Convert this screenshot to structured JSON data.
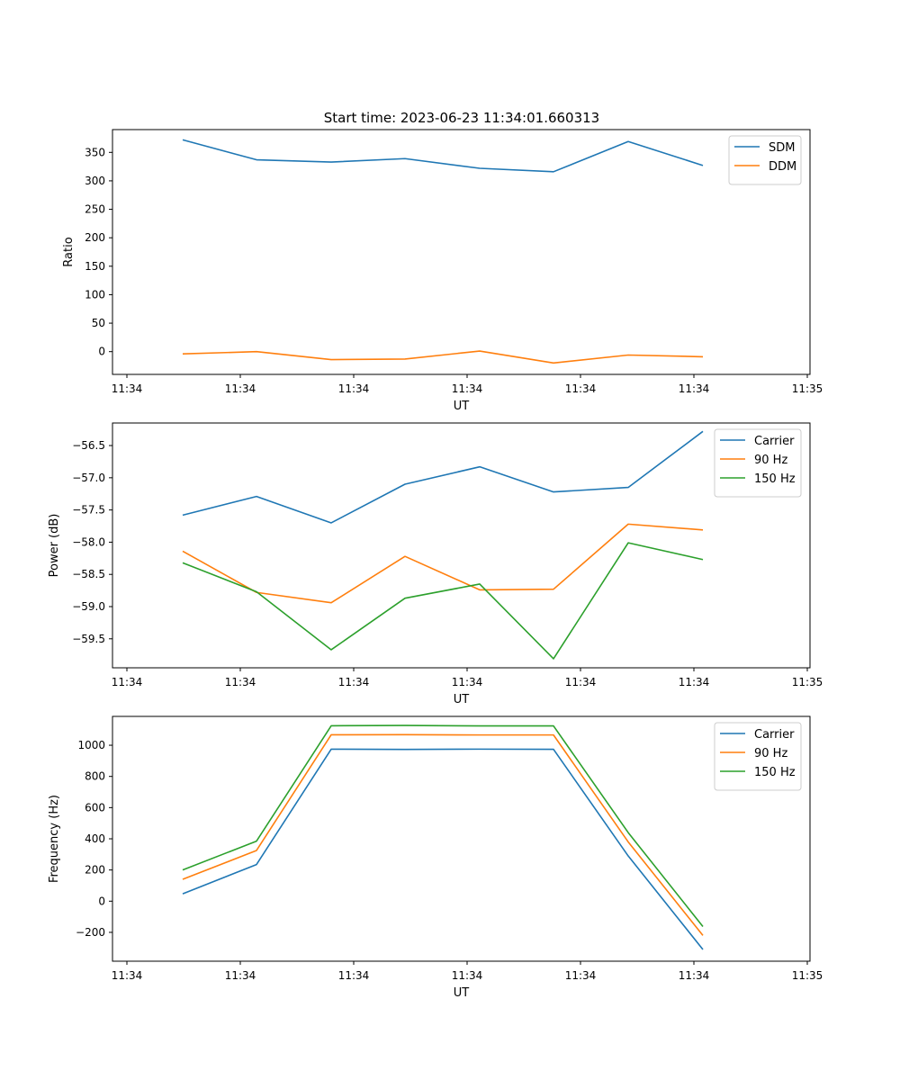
{
  "figure": {
    "title": "Start time: 2023-06-23 11:34:01.660313"
  },
  "colors": {
    "blue": "#1f77b4",
    "orange": "#ff7f0e",
    "green": "#2ca02c"
  },
  "chart_data": [
    {
      "type": "line",
      "ylabel": "Ratio",
      "xlabel": "UT",
      "xticks": [
        "11:34",
        "11:34",
        "11:34",
        "11:34",
        "11:34",
        "11:34",
        "11:35"
      ],
      "yticks": [
        0,
        50,
        100,
        150,
        200,
        250,
        300,
        350
      ],
      "ylim": [
        -40,
        390
      ],
      "legend": "top-right",
      "grid": false,
      "series": [
        {
          "name": "SDM",
          "color": "#1f77b4",
          "values": [
            372,
            337,
            333,
            339,
            322,
            316,
            369,
            327
          ]
        },
        {
          "name": "DDM",
          "color": "#ff7f0e",
          "values": [
            -4,
            0,
            -14,
            -13,
            1,
            -20,
            -6,
            -9
          ]
        }
      ]
    },
    {
      "type": "line",
      "ylabel": "Power (dB)",
      "xlabel": "UT",
      "xticks": [
        "11:34",
        "11:34",
        "11:34",
        "11:34",
        "11:34",
        "11:34",
        "11:35"
      ],
      "yticks": [
        -59.5,
        -59.0,
        -58.5,
        -58.0,
        -57.5,
        -57.0,
        -56.5
      ],
      "ytick_labels": [
        "−59.5",
        "−59.0",
        "−58.5",
        "−58.0",
        "−57.5",
        "−57.0",
        "−56.5"
      ],
      "ylim": [
        -59.95,
        -56.15
      ],
      "legend": "top-right",
      "grid": false,
      "series": [
        {
          "name": "Carrier",
          "color": "#1f77b4",
          "values": [
            -57.58,
            -57.29,
            -57.7,
            -57.1,
            -56.83,
            -57.22,
            -57.15,
            -56.28
          ]
        },
        {
          "name": "90 Hz",
          "color": "#ff7f0e",
          "values": [
            -58.14,
            -58.78,
            -58.94,
            -58.22,
            -58.74,
            -58.73,
            -57.72,
            -57.81
          ]
        },
        {
          "name": "150 Hz",
          "color": "#2ca02c",
          "values": [
            -58.32,
            -58.77,
            -59.67,
            -58.87,
            -58.65,
            -59.81,
            -58.01,
            -58.27
          ]
        }
      ]
    },
    {
      "type": "line",
      "ylabel": "Frequency (Hz)",
      "xlabel": "UT",
      "xticks": [
        "11:34",
        "11:34",
        "11:34",
        "11:34",
        "11:34",
        "11:34",
        "11:35"
      ],
      "yticks": [
        -200,
        0,
        200,
        400,
        600,
        800,
        1000
      ],
      "ytick_labels": [
        "−200",
        "0",
        "200",
        "400",
        "600",
        "800",
        "1000"
      ],
      "ylim": [
        -385,
        1185
      ],
      "legend": "top-right",
      "grid": false,
      "series": [
        {
          "name": "Carrier",
          "color": "#1f77b4",
          "values": [
            47,
            235,
            975,
            973,
            975,
            974,
            290,
            -310
          ]
        },
        {
          "name": "90 Hz",
          "color": "#ff7f0e",
          "values": [
            140,
            325,
            1067,
            1068,
            1066,
            1066,
            380,
            -220
          ]
        },
        {
          "name": "150 Hz",
          "color": "#2ca02c",
          "values": [
            200,
            385,
            1125,
            1127,
            1124,
            1124,
            440,
            -163
          ]
        }
      ]
    }
  ]
}
